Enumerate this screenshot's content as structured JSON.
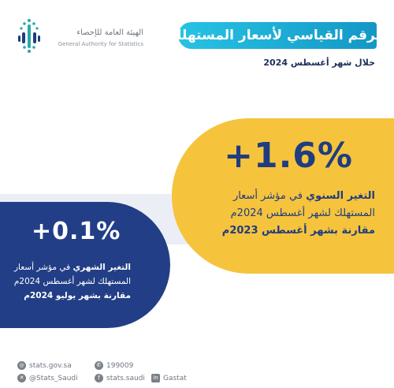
{
  "logo": {
    "name_ar": "الهيئة العامة للإحصاء",
    "name_en": "General Authority for Statistics"
  },
  "header": {
    "title": "الرقم القياسي لأسعار المستهلك",
    "subtitle": "خلال شهر أغسطس 2024"
  },
  "annual": {
    "value": "+1.6%",
    "label_strong": "التغير السنوي",
    "label_rest": " في مؤشر أسعار",
    "line2": "المستهلك لشهر أغسطس 2024م",
    "line3": "مقارنة بشهر أغسطس 2023م"
  },
  "monthly": {
    "value": "+0.1%",
    "label_strong": "التغير الشهري",
    "label_rest": " في مؤشر أسعار",
    "line2": "المستهلك لشهر أغسطس 2024م",
    "line3": "مقارنة بشهر يوليو 2024م"
  },
  "footer": {
    "website": "stats.gov.sa",
    "phone": "199009",
    "x": "@Stats_Saudi",
    "facebook": "stats.saudi",
    "linkedin": "Gastat"
  },
  "colors": {
    "title_start": "#27c3e4",
    "title_end": "#1497c6",
    "annual_card": "#f6c33d",
    "monthly_card": "#223e86",
    "navy_text": "#1f3d7f"
  }
}
